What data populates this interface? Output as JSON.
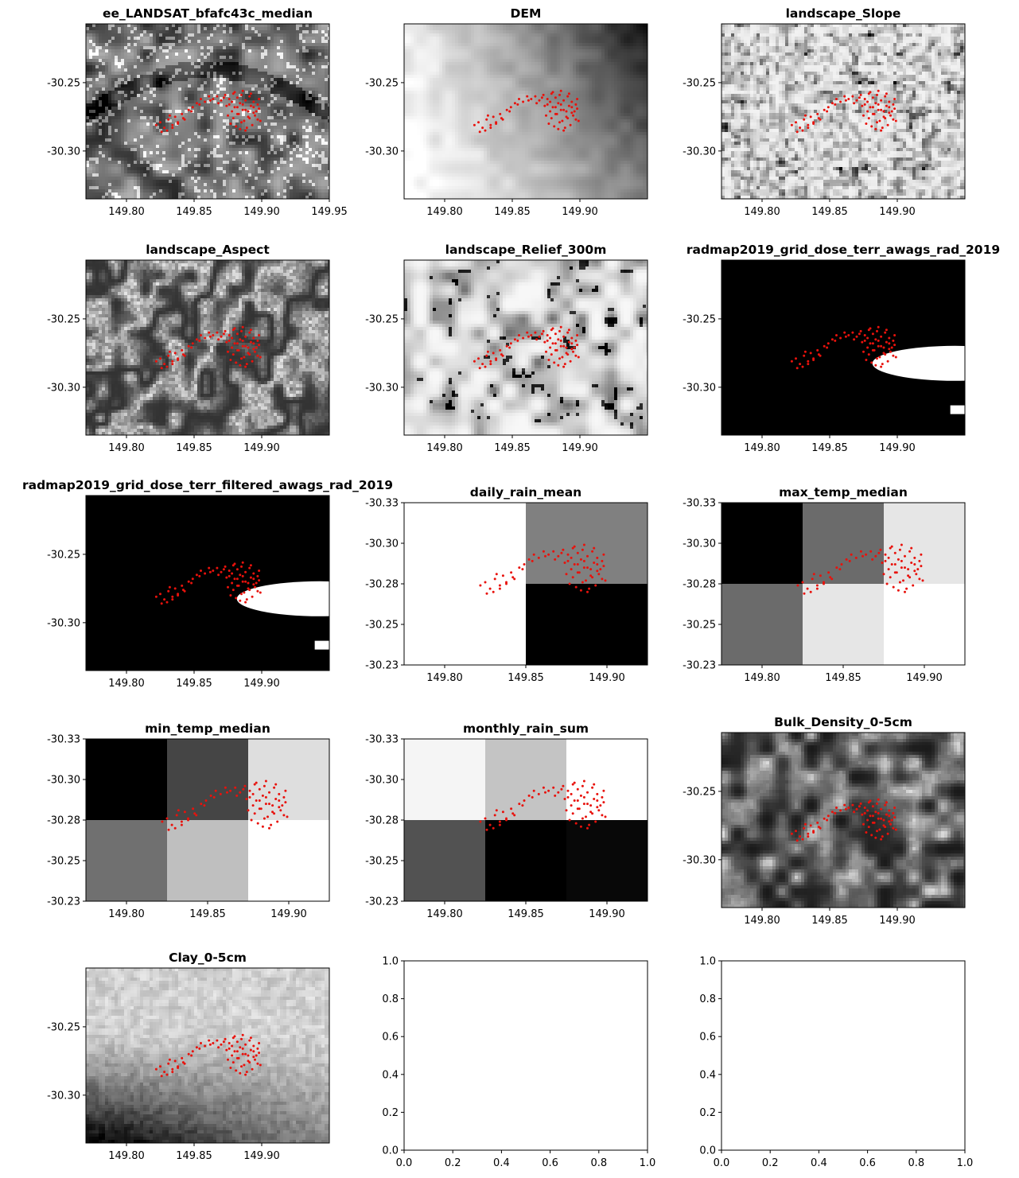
{
  "figure": {
    "panels": [
      {
        "title": "ee_LANDSAT_bfafc43c_median",
        "kind": "map",
        "texture": "landsat",
        "xticks": [
          "149.80",
          "149.85",
          "149.90",
          "149.95"
        ],
        "yticks": [
          "-30.25",
          "-30.30"
        ]
      },
      {
        "title": "DEM",
        "kind": "map",
        "texture": "dem",
        "xticks": [
          "149.80",
          "149.85",
          "149.90"
        ],
        "yticks": [
          "-30.25",
          "-30.30"
        ]
      },
      {
        "title": "landscape_Slope",
        "kind": "map",
        "texture": "slope",
        "xticks": [
          "149.80",
          "149.85",
          "149.90"
        ],
        "yticks": [
          "-30.25",
          "-30.30"
        ]
      },
      {
        "title": "landscape_Aspect",
        "kind": "map",
        "texture": "aspect",
        "xticks": [
          "149.80",
          "149.85",
          "149.90"
        ],
        "yticks": [
          "-30.25",
          "-30.30"
        ]
      },
      {
        "title": "landscape_Relief_300m",
        "kind": "map",
        "texture": "relief",
        "xticks": [
          "149.80",
          "149.85",
          "149.90"
        ],
        "yticks": [
          "-30.25",
          "-30.30"
        ]
      },
      {
        "title": "radmap2019_grid_dose_terr_awags_rad_2019",
        "kind": "map",
        "texture": "radmap",
        "xticks": [
          "149.80",
          "149.85",
          "149.90"
        ],
        "yticks": [
          "-30.25",
          "-30.30"
        ]
      },
      {
        "title": "radmap2019_grid_dose_terr_filtered_awags_rad_2019",
        "kind": "map",
        "texture": "radmap",
        "xticks": [
          "149.80",
          "149.85",
          "149.90"
        ],
        "yticks": [
          "-30.25",
          "-30.30"
        ]
      },
      {
        "title": "daily_rain_mean",
        "kind": "grid",
        "cells": [
          [
            1.0,
            0.5
          ],
          [
            1.0,
            0.0
          ]
        ],
        "xticks": [
          "149.80",
          "149.85",
          "149.90"
        ],
        "yticks": [
          "-30.33",
          "-30.30",
          "-30.28",
          "-30.25",
          "-30.23"
        ]
      },
      {
        "title": "max_temp_median",
        "kind": "grid",
        "cells": [
          [
            0.0,
            0.42,
            0.9
          ],
          [
            0.42,
            0.9,
            1.0
          ]
        ],
        "xticks": [
          "149.80",
          "149.85",
          "149.90"
        ],
        "yticks": [
          "-30.33",
          "-30.30",
          "-30.28",
          "-30.25",
          "-30.23"
        ]
      },
      {
        "title": "min_temp_median",
        "kind": "grid",
        "cells": [
          [
            0.0,
            0.27,
            0.87
          ],
          [
            0.44,
            0.75,
            1.0
          ]
        ],
        "xticks": [
          "149.80",
          "149.85",
          "149.90"
        ],
        "yticks": [
          "-30.33",
          "-30.30",
          "-30.28",
          "-30.25",
          "-30.23"
        ]
      },
      {
        "title": "monthly_rain_sum",
        "kind": "grid",
        "cells": [
          [
            0.96,
            0.77,
            1.0
          ],
          [
            0.32,
            0.0,
            0.03
          ]
        ],
        "xticks": [
          "149.80",
          "149.85",
          "149.90"
        ],
        "yticks": [
          "-30.33",
          "-30.30",
          "-30.28",
          "-30.25",
          "-30.23"
        ]
      },
      {
        "title": "Bulk_Density_0-5cm",
        "kind": "map",
        "texture": "bulk",
        "xticks": [
          "149.80",
          "149.85",
          "149.90"
        ],
        "yticks": [
          "-30.25",
          "-30.30"
        ]
      },
      {
        "title": "Clay_0-5cm",
        "kind": "map",
        "texture": "clay",
        "xticks": [
          "149.80",
          "149.85",
          "149.90"
        ],
        "yticks": [
          "-30.25",
          "-30.30"
        ]
      },
      {
        "title": "",
        "kind": "empty",
        "xticks": [
          "0.0",
          "0.2",
          "0.4",
          "0.6",
          "0.8",
          "1.0"
        ],
        "yticks": [
          "1.0",
          "0.8",
          "0.6",
          "0.4",
          "0.2",
          "0.0"
        ]
      },
      {
        "title": "",
        "kind": "empty",
        "xticks": [
          "0.0",
          "0.2",
          "0.4",
          "0.6",
          "0.8",
          "1.0"
        ],
        "yticks": [
          "1.0",
          "0.8",
          "0.6",
          "0.4",
          "0.2",
          "0.0"
        ]
      }
    ]
  },
  "chart_data": {
    "type": "heatmap",
    "layout": "5 rows x 3 columns of map panels with overlaid red sample points",
    "colormap": "grayscale",
    "marker_color": "#e8120c",
    "sample_points": {
      "x": [
        149.822,
        149.825,
        149.828,
        149.831,
        149.834,
        149.836,
        149.838,
        149.841,
        149.843,
        149.846,
        149.849,
        149.852,
        149.855,
        149.858,
        149.861,
        149.864,
        149.867,
        149.87,
        149.873,
        149.876,
        149.879,
        149.882,
        149.885,
        149.888,
        149.891,
        149.894,
        149.897,
        149.876,
        149.88,
        149.884,
        149.888,
        149.892,
        149.896,
        149.878,
        149.882,
        149.886,
        149.89,
        149.894,
        149.898,
        149.875,
        149.879,
        149.883,
        149.887,
        149.891,
        149.895,
        149.899,
        149.877,
        149.881,
        149.885,
        149.889,
        149.893,
        149.897,
        149.874,
        149.878,
        149.882,
        149.886,
        149.89,
        149.894,
        149.83,
        149.834,
        149.838,
        149.826,
        149.832,
        149.842,
        149.848,
        149.854,
        149.862,
        149.868,
        149.872,
        149.88,
        149.886,
        149.892,
        149.898,
        149.884,
        149.888
      ],
      "y": [
        -30.281,
        -30.279,
        -30.283,
        -30.277,
        -30.281,
        -30.275,
        -30.279,
        -30.273,
        -30.277,
        -30.27,
        -30.268,
        -30.265,
        -30.262,
        -30.264,
        -30.26,
        -30.262,
        -30.26,
        -30.263,
        -30.259,
        -30.262,
        -30.258,
        -30.261,
        -30.259,
        -30.263,
        -30.26,
        -30.264,
        -30.266,
        -30.266,
        -30.268,
        -30.265,
        -30.27,
        -30.267,
        -30.271,
        -30.271,
        -30.273,
        -30.27,
        -30.275,
        -30.272,
        -30.269,
        -30.274,
        -30.276,
        -30.273,
        -30.278,
        -30.276,
        -30.274,
        -30.278,
        -30.28,
        -30.282,
        -30.279,
        -30.283,
        -30.281,
        -30.277,
        -30.267,
        -30.264,
        -30.268,
        -30.266,
        -30.271,
        -30.268,
        -30.285,
        -30.283,
        -30.28,
        -30.286,
        -30.274,
        -30.276,
        -30.271,
        -30.266,
        -30.263,
        -30.265,
        -30.261,
        -30.257,
        -30.256,
        -30.258,
        -30.262,
        -30.284,
        -30.285
      ]
    },
    "panels": [
      {
        "title": "ee_LANDSAT_bfafc43c_median",
        "type": "heatmap",
        "xlim": [
          149.77,
          149.95
        ],
        "ylim": [
          -30.335,
          -30.207
        ]
      },
      {
        "title": "DEM",
        "type": "heatmap",
        "xlim": [
          149.77,
          149.95
        ],
        "ylim": [
          -30.335,
          -30.207
        ]
      },
      {
        "title": "landscape_Slope",
        "type": "heatmap",
        "xlim": [
          149.77,
          149.95
        ],
        "ylim": [
          -30.335,
          -30.207
        ]
      },
      {
        "title": "landscape_Aspect",
        "type": "heatmap",
        "xlim": [
          149.77,
          149.95
        ],
        "ylim": [
          -30.335,
          -30.207
        ]
      },
      {
        "title": "landscape_Relief_300m",
        "type": "heatmap",
        "xlim": [
          149.77,
          149.95
        ],
        "ylim": [
          -30.335,
          -30.207
        ]
      },
      {
        "title": "radmap2019_grid_dose_terr_awags_rad_2019",
        "type": "heatmap",
        "xlim": [
          149.77,
          149.95
        ],
        "ylim": [
          -30.335,
          -30.207
        ]
      },
      {
        "title": "radmap2019_grid_dose_terr_filtered_awags_rad_2019",
        "type": "heatmap",
        "xlim": [
          149.77,
          149.95
        ],
        "ylim": [
          -30.335,
          -30.207
        ]
      },
      {
        "title": "daily_rain_mean",
        "type": "heatmap",
        "xlim": [
          149.775,
          149.925
        ],
        "ylim": [
          -30.33,
          -30.23
        ],
        "ylim_note": "y axis inverted"
      },
      {
        "title": "max_temp_median",
        "type": "heatmap",
        "xlim": [
          149.775,
          149.925
        ],
        "ylim": [
          -30.33,
          -30.23
        ]
      },
      {
        "title": "min_temp_median",
        "type": "heatmap",
        "xlim": [
          149.775,
          149.925
        ],
        "ylim": [
          -30.33,
          -30.23
        ]
      },
      {
        "title": "monthly_rain_sum",
        "type": "heatmap",
        "xlim": [
          149.775,
          149.925
        ],
        "ylim": [
          -30.33,
          -30.23
        ]
      },
      {
        "title": "Bulk_Density_0-5cm",
        "type": "heatmap",
        "xlim": [
          149.77,
          149.95
        ],
        "ylim": [
          -30.335,
          -30.207
        ]
      },
      {
        "title": "Clay_0-5cm",
        "type": "heatmap",
        "xlim": [
          149.77,
          149.95
        ],
        "ylim": [
          -30.335,
          -30.207
        ]
      },
      {
        "title": "",
        "type": "scatter",
        "xlim": [
          0.0,
          1.0
        ],
        "ylim": [
          0.0,
          1.0
        ]
      },
      {
        "title": "",
        "type": "scatter",
        "xlim": [
          0.0,
          1.0
        ],
        "ylim": [
          0.0,
          1.0
        ]
      }
    ]
  }
}
